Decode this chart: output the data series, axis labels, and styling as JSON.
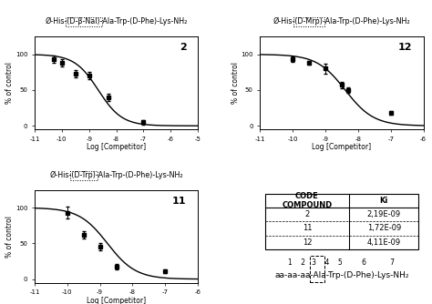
{
  "plots": [
    {
      "label": "2",
      "title": "Ø-His-(D-β-Nal)-Ala-Trp-(D-Phe)-Lys-NH₂",
      "title_dashed_part": "(D-β-Nal)",
      "title_prefix": "Ø-His-",
      "title_suffix": "-Ala-Trp-(D-Phe)-Lys-NH₂",
      "xmin": -11,
      "xmax": -5,
      "xticks": [
        -11,
        -10,
        -9,
        -8,
        -7,
        -6,
        -5
      ],
      "yticks": [
        0,
        50,
        100
      ],
      "xlabel": "Log [Competitor]",
      "ylabel": "% of control",
      "ic50_log": -8.66,
      "hill": 1.0,
      "data_x": [
        -10.3,
        -10.0,
        -9.5,
        -9.0,
        -8.3,
        -7.0
      ],
      "data_y": [
        93,
        88,
        73,
        70,
        40,
        5
      ],
      "data_yerr": [
        5,
        5,
        5,
        5,
        5,
        3
      ]
    },
    {
      "label": "12",
      "title": "Ø-His-(D-Mrp)-Ala-Trp-(D-Phe)-Lys-NH₂",
      "title_dashed_part": "(D-Mrp)",
      "title_prefix": "Ø-His-",
      "title_suffix": "-Ala-Trp-(D-Phe)-Lys-NH₂",
      "xmin": -11,
      "xmax": -6,
      "xticks": [
        -11,
        -10,
        -9,
        -8,
        -7,
        -6
      ],
      "yticks": [
        0,
        50,
        100
      ],
      "xlabel": "Log [Competitor]",
      "ylabel": "% of control",
      "ic50_log": -8.39,
      "hill": 1.0,
      "data_x": [
        -10.0,
        -9.5,
        -9.0,
        -8.5,
        -8.3,
        -7.0
      ],
      "data_y": [
        93,
        88,
        80,
        57,
        50,
        18
      ],
      "data_yerr": [
        4,
        3,
        7,
        5,
        4,
        3
      ]
    },
    {
      "label": "11",
      "title": "Ø-His-(D-Trp)-Ala-Trp-(D-Phe)-Lys-NH₂",
      "title_dashed_part": "(D-Trp)",
      "title_prefix": "Ø-His-",
      "title_suffix": "-Ala-Trp-(D-Phe)-Lys-NH₂",
      "xmin": -11,
      "xmax": -6,
      "xticks": [
        -11,
        -10,
        -9,
        -8,
        -7,
        -6
      ],
      "yticks": [
        0,
        50,
        100
      ],
      "xlabel": "Log [Competitor]",
      "ylabel": "% of control",
      "ic50_log": -8.77,
      "hill": 1.0,
      "data_x": [
        -10.0,
        -9.5,
        -9.0,
        -8.5,
        -7.0
      ],
      "data_y": [
        93,
        62,
        45,
        17,
        11
      ],
      "data_yerr": [
        8,
        5,
        5,
        4,
        3
      ]
    }
  ],
  "table": {
    "header": [
      "CODE\nCOMPOUND",
      "Ki"
    ],
    "rows": [
      [
        "2",
        "2,19E-09"
      ],
      [
        "11",
        "1,72E-09"
      ],
      [
        "12",
        "4,11E-09"
      ]
    ]
  },
  "bg_color": "#ffffff",
  "line_color": "#000000",
  "dot_color": "#000000"
}
